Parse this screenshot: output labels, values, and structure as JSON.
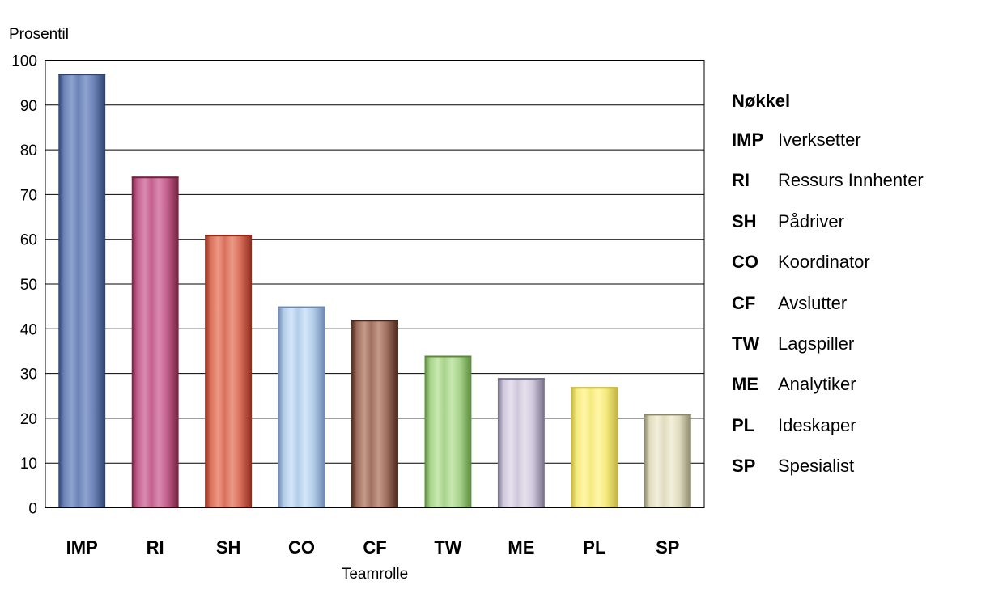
{
  "chart_data": {
    "type": "bar",
    "ylabel": "Prosentil",
    "xlabel": "Teamrolle",
    "ylim": [
      0,
      100
    ],
    "yticks": [
      0,
      10,
      20,
      30,
      40,
      50,
      60,
      70,
      80,
      90,
      100
    ],
    "grid": true,
    "categories": [
      "IMP",
      "RI",
      "SH",
      "CO",
      "CF",
      "TW",
      "ME",
      "PL",
      "SP"
    ],
    "values": [
      97,
      74,
      61,
      45,
      42,
      34,
      29,
      27,
      21
    ],
    "colors": [
      {
        "dark": "#2e4270",
        "mid": "#6d84b8",
        "light": "#8fa3cf"
      },
      {
        "dark": "#74203e",
        "mid": "#c4608e",
        "light": "#d98bb0"
      },
      {
        "dark": "#8f2a1c",
        "mid": "#d9705c",
        "light": "#eb9a86"
      },
      {
        "dark": "#6b86b0",
        "mid": "#b3cde8",
        "light": "#d4e6f8"
      },
      {
        "dark": "#4a2418",
        "mid": "#a07060",
        "light": "#c49a88"
      },
      {
        "dark": "#5a8a3a",
        "mid": "#a8d38c",
        "light": "#c8e8b0"
      },
      {
        "dark": "#756d86",
        "mid": "#cfc8dc",
        "light": "#e6e1ee"
      },
      {
        "dark": "#c2b140",
        "mid": "#f5ea80",
        "light": "#fff6a8"
      },
      {
        "dark": "#8a8668",
        "mid": "#e0dcc0",
        "light": "#f2efdc"
      }
    ]
  },
  "legend": {
    "title": "Nøkkel",
    "items": [
      {
        "code": "IMP",
        "label": "Iverksetter"
      },
      {
        "code": "RI",
        "label": "Ressurs Innhenter"
      },
      {
        "code": "SH",
        "label": "Pådriver"
      },
      {
        "code": "CO",
        "label": "Koordinator"
      },
      {
        "code": "CF",
        "label": "Avslutter"
      },
      {
        "code": "TW",
        "label": "Lagspiller"
      },
      {
        "code": "ME",
        "label": "Analytiker"
      },
      {
        "code": "PL",
        "label": "Ideskaper"
      },
      {
        "code": "SP",
        "label": "Spesialist"
      }
    ]
  }
}
